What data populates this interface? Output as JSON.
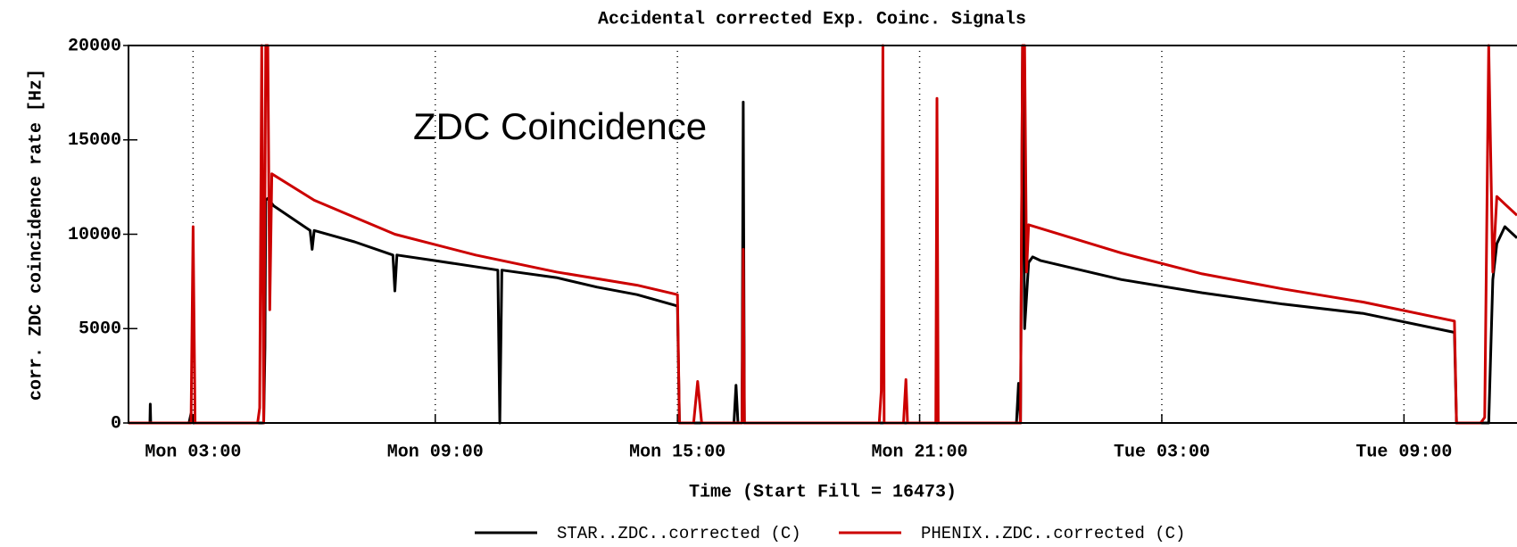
{
  "chart_data": {
    "type": "line",
    "title": "Accidental corrected Exp. Coinc. Signals",
    "annotation": "ZDC Coincidence",
    "x_label": "Time (Start Fill = 16473)",
    "y_label": "corr. ZDC coincidence rate [Hz]",
    "xlim": [
      1.4,
      35.8
    ],
    "ylim": [
      0,
      20000
    ],
    "xticks": [
      {
        "value": 3,
        "label": "Mon 03:00"
      },
      {
        "value": 9,
        "label": "Mon 09:00"
      },
      {
        "value": 15,
        "label": "Mon 15:00"
      },
      {
        "value": 21,
        "label": "Mon 21:00"
      },
      {
        "value": 27,
        "label": "Tue 03:00"
      },
      {
        "value": 33,
        "label": "Tue 09:00"
      }
    ],
    "yticks": [
      0,
      5000,
      10000,
      15000,
      20000
    ],
    "grid": true,
    "series": [
      {
        "name": "STAR..ZDC..corrected (C)",
        "color": "#000000",
        "x": [
          1.4,
          1.93,
          1.94,
          1.95,
          2.9,
          2.95,
          3.0,
          4.75,
          4.78,
          4.8,
          4.85,
          5.0,
          5.9,
          5.95,
          6.0,
          7.0,
          7.95,
          8.0,
          8.05,
          9.0,
          10.55,
          10.6,
          10.65,
          12,
          13,
          14,
          15.0,
          15.05,
          16.4,
          16.45,
          16.5,
          16.55,
          16.6,
          16.63,
          16.66,
          16.7,
          23.4,
          23.45,
          23.5,
          23.55,
          23.6,
          23.7,
          23.8,
          24,
          26,
          28,
          30,
          32,
          34.25,
          34.3,
          35.1,
          35.2,
          35.3,
          35.5,
          35.8
        ],
        "values": [
          0,
          0,
          1000,
          0,
          0,
          500,
          0,
          0,
          4000,
          11800,
          11900,
          11500,
          10200,
          9200,
          10200,
          9600,
          8900,
          7000,
          8900,
          8600,
          8100,
          0,
          8100,
          7700,
          7200,
          6800,
          6200,
          0,
          0,
          2000,
          0,
          0,
          0,
          17000,
          0,
          0,
          0,
          2100,
          0,
          20000,
          5000,
          8500,
          8800,
          8600,
          7600,
          6900,
          6300,
          5800,
          4800,
          0,
          0,
          7600,
          9500,
          10400,
          9800
        ]
      },
      {
        "name": "PHENIX..ZDC..corrected (C)",
        "color": "#cc0000",
        "x": [
          1.4,
          2.95,
          3.0,
          3.05,
          4.6,
          4.65,
          4.7,
          4.75,
          4.8,
          4.85,
          4.9,
          4.95,
          6,
          8,
          10,
          12,
          14,
          15.0,
          15.05,
          15.4,
          15.5,
          15.6,
          16.55,
          16.6,
          16.63,
          16.66,
          20.0,
          20.05,
          20.09,
          20.12,
          20.6,
          20.66,
          20.7,
          21.35,
          21.4,
          21.43,
          21.46,
          23.5,
          23.55,
          23.6,
          23.65,
          23.7,
          26,
          28,
          30,
          32,
          34.25,
          34.3,
          34.9,
          35.0,
          35.1,
          35.2,
          35.3,
          35.5,
          35.8
        ],
        "values": [
          0,
          0,
          10400,
          0,
          0,
          800,
          20000,
          0,
          20000,
          20000,
          6000,
          13200,
          11800,
          10000,
          8900,
          8000,
          7300,
          6800,
          0,
          0,
          2200,
          0,
          0,
          0,
          9200,
          0,
          0,
          1700,
          20000,
          0,
          0,
          2300,
          0,
          0,
          0,
          17200,
          0,
          0,
          20000,
          20000,
          8000,
          10500,
          9000,
          7900,
          7100,
          6400,
          5400,
          0,
          0,
          300,
          20000,
          8000,
          12000,
          11600,
          11000
        ]
      }
    ]
  }
}
